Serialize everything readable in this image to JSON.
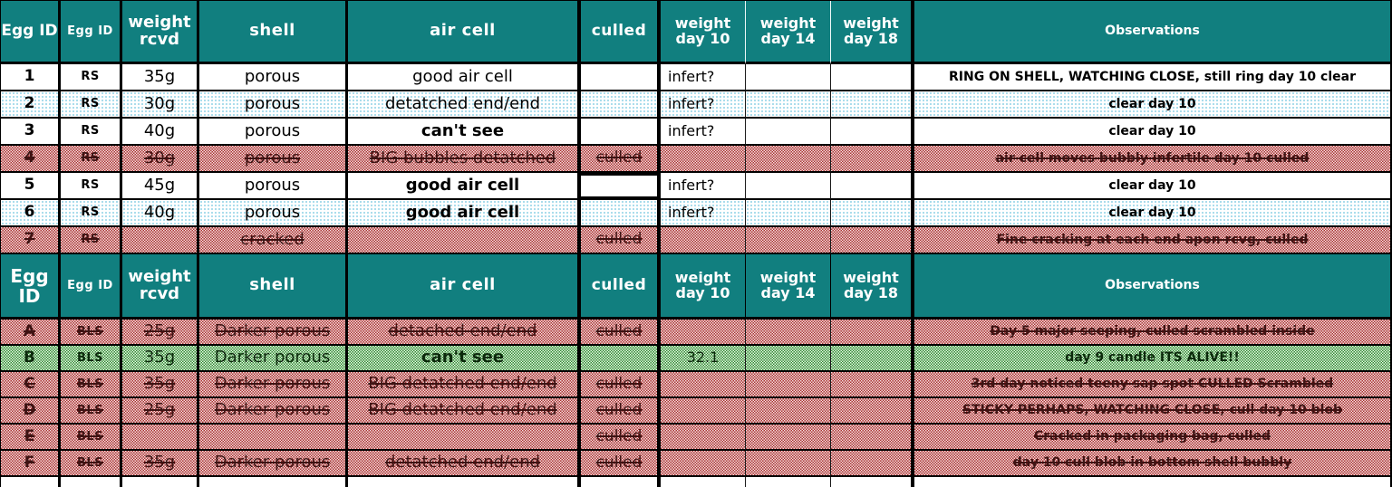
{
  "palette": {
    "header_teal": "#117f7f",
    "culled_red_dot": "#a93131",
    "alive_green_dot": "#2e8b2e",
    "blue_dot": "#8fd2e6",
    "grid": "#000000"
  },
  "columns": [
    {
      "key": "egg-id",
      "label": "Egg ID"
    },
    {
      "key": "egg-id-2",
      "label": "Egg ID"
    },
    {
      "key": "weight-rcvd",
      "label": "weight rcvd"
    },
    {
      "key": "shell",
      "label": "shell"
    },
    {
      "key": "air-cell",
      "label": "air cell"
    },
    {
      "key": "culled",
      "label": "culled"
    },
    {
      "key": "weight-day-10",
      "label": "weight day 10"
    },
    {
      "key": "weight-day-14",
      "label": "weight day 14"
    },
    {
      "key": "weight-day-18",
      "label": "weight day 18"
    },
    {
      "key": "observations",
      "label": "Observations"
    }
  ],
  "table1": {
    "rows": [
      {
        "variant": "white",
        "bold_cells": [],
        "cells": [
          "1",
          "RS",
          "35g",
          "porous",
          "good air cell",
          "",
          "infert?",
          "",
          "",
          "RING ON SHELL, WATCHING CLOSE, still ring day 10 clear"
        ]
      },
      {
        "variant": "blue",
        "bold_cells": [],
        "cells": [
          "2",
          "RS",
          "30g",
          "porous",
          "detatched end/end",
          "",
          "infert?",
          "",
          "",
          "clear day 10"
        ]
      },
      {
        "variant": "white",
        "bold_cells": [
          4
        ],
        "cells": [
          "3",
          "RS",
          "40g",
          "porous",
          "can't see",
          "",
          "infert?",
          "",
          "",
          "clear day 10"
        ]
      },
      {
        "variant": "culled",
        "bold_cells": [],
        "cells": [
          "4",
          "RS",
          "30g",
          "porous",
          "BIG bubbles detatched",
          "culled",
          "",
          "",
          "",
          "air cell moves bubbly infertile day 10 culled"
        ]
      },
      {
        "variant": "white",
        "bold_cells": [
          4
        ],
        "boxed_culled": true,
        "cells": [
          "5",
          "RS",
          "45g",
          "porous",
          "good air cell",
          "",
          "infert?",
          "",
          "",
          "clear day 10"
        ]
      },
      {
        "variant": "blue",
        "bold_cells": [
          4
        ],
        "cells": [
          "6",
          "RS",
          "40g",
          "porous",
          "good air cell",
          "",
          "infert?",
          "",
          "",
          "clear day 10"
        ]
      },
      {
        "variant": "culled",
        "bold_cells": [],
        "cells": [
          "7",
          "RS",
          "",
          "cracked",
          "",
          "culled",
          "",
          "",
          "",
          "Fine cracking at each end apon rcvg, culled"
        ]
      }
    ]
  },
  "table2": {
    "rows": [
      {
        "variant": "culled",
        "bold_cells": [],
        "cells": [
          "A",
          "BLS",
          "25g",
          "Darker porous",
          "detached end/end",
          "culled",
          "",
          "",
          "",
          "Day 5 major seeping, culled scrambled inside"
        ]
      },
      {
        "variant": "alive",
        "bold_cells": [
          4
        ],
        "cells": [
          "B",
          "BLS",
          "35g",
          "Darker porous",
          "can't see",
          "",
          "32.1",
          "",
          "",
          "day 9 candle ITS ALIVE!!"
        ]
      },
      {
        "variant": "culled",
        "bold_cells": [],
        "cells": [
          "C",
          "BLS",
          "35g",
          "Darker porous",
          "BIG detatched end/end",
          "culled",
          "",
          "",
          "",
          "3rd day noticed teeny sap spot CULLED Scrambled"
        ]
      },
      {
        "variant": "culled",
        "bold_cells": [],
        "cells": [
          "D",
          "BLS",
          "25g",
          "Darker porous",
          "BIG detatched end/end",
          "culled",
          "",
          "",
          "",
          "STICKY PERHAPS, WATCHING CLOSE, cull day 10 blob"
        ]
      },
      {
        "variant": "culled",
        "bold_cells": [],
        "cells": [
          "E",
          "BLS",
          "",
          "",
          "",
          "culled",
          "",
          "",
          "",
          "Cracked in packaging bag, culled"
        ]
      },
      {
        "variant": "culled",
        "bold_cells": [],
        "cells": [
          "F",
          "BLS",
          "35g",
          "Darker porous",
          "detatched end/end",
          "culled",
          "",
          "",
          "",
          "day 10 cull  blob in bottom shell bubbly"
        ]
      }
    ]
  }
}
